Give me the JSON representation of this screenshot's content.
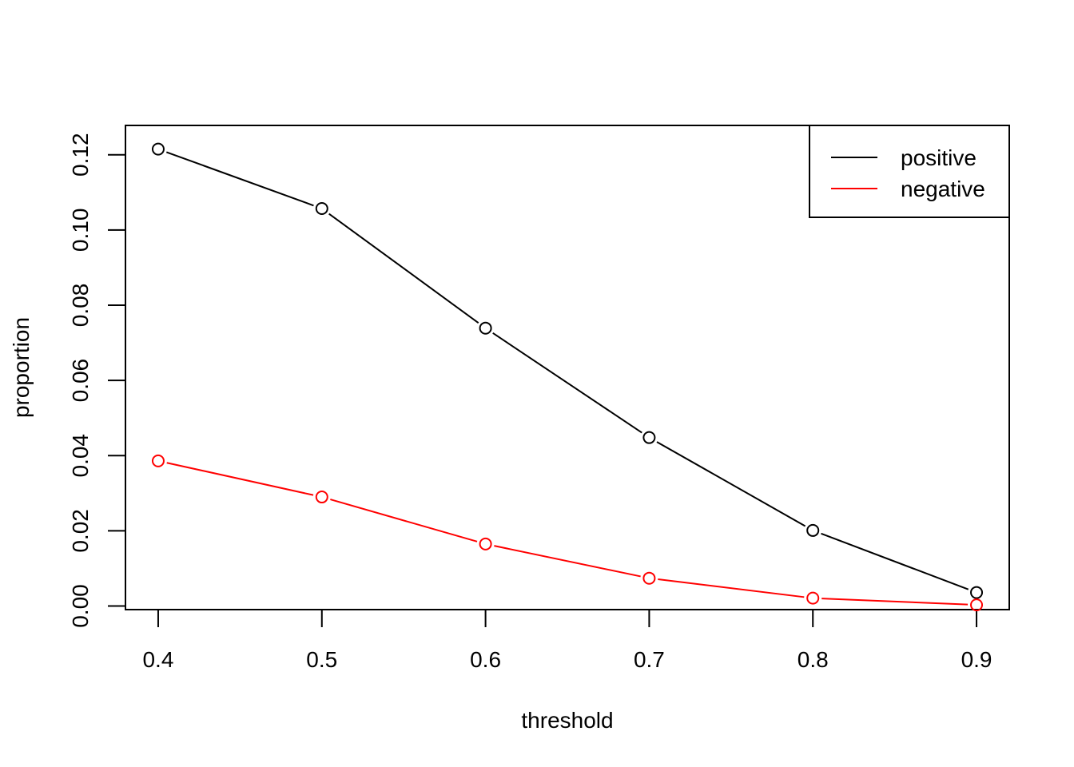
{
  "chart_data": {
    "type": "line",
    "title": "",
    "xlabel": "threshold",
    "ylabel": "proportion",
    "x": [
      0.4,
      0.5,
      0.6,
      0.7,
      0.8,
      0.9
    ],
    "xlim": [
      0.38,
      0.92
    ],
    "ylim": [
      -0.00095,
      0.1278
    ],
    "x_ticks": [
      "0.4",
      "0.5",
      "0.6",
      "0.7",
      "0.8",
      "0.9"
    ],
    "y_ticks": [
      "0.00",
      "0.02",
      "0.04",
      "0.06",
      "0.08",
      "0.10",
      "0.12"
    ],
    "grid": false,
    "legend_position": "top-right",
    "series": [
      {
        "name": "positive",
        "color": "#000000",
        "values": [
          0.1215,
          0.1057,
          0.0739,
          0.0448,
          0.0201,
          0.0036
        ]
      },
      {
        "name": "negative",
        "color": "#ff0000",
        "values": [
          0.0386,
          0.029,
          0.0165,
          0.0074,
          0.0021,
          0.0003
        ]
      }
    ]
  }
}
